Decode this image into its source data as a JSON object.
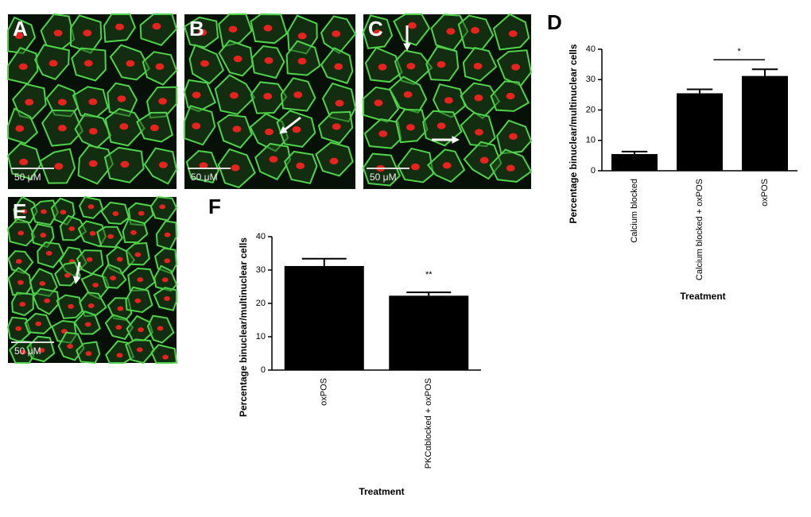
{
  "panels": [
    {
      "label": "A",
      "scale_bar": "50 μM"
    },
    {
      "label": "B",
      "scale_bar": "50 μM"
    },
    {
      "label": "C",
      "scale_bar": "50 μM"
    },
    {
      "label": "E",
      "scale_bar": "50 μM"
    }
  ],
  "chart_data": [
    {
      "type": "bar",
      "panel": "D",
      "ylabel": "Percentage binuclear/multinuclear cells",
      "xlabel": "Treatment",
      "categories": [
        "Calcium blocked",
        "Calcium blocked + oxPOS",
        "oxPOS"
      ],
      "values": [
        5.5,
        25.5,
        31.2
      ],
      "errors": [
        0.8,
        1.3,
        2.2
      ],
      "color": "#000000",
      "ylim": [
        0,
        40
      ],
      "yticks": [
        0,
        10,
        20,
        30,
        40
      ],
      "annotations": [
        {
          "text": "*",
          "over": [
            "Calcium blocked + oxPOS",
            "oxPOS"
          ]
        }
      ]
    },
    {
      "type": "bar",
      "panel": "F",
      "ylabel": "Percentage binuclear/multinuclear cells",
      "xlabel": "Treatment",
      "categories": [
        "oxPOS",
        "PKCαblocked + oxPOS"
      ],
      "values": [
        31.2,
        22.3
      ],
      "errors": [
        2.2,
        1.0
      ],
      "color": "#000000",
      "ylim": [
        0,
        40
      ],
      "yticks": [
        0,
        10,
        20,
        30,
        40
      ],
      "annotations": [
        {
          "text": "**",
          "over": [
            "PKCαblocked + oxPOS"
          ]
        }
      ]
    }
  ]
}
